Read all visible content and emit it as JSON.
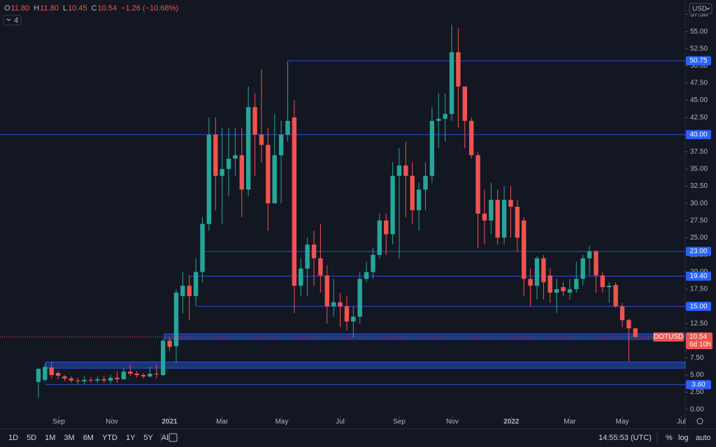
{
  "header": {
    "legend": [
      {
        "key": "O",
        "value": "11.80"
      },
      {
        "key": "H",
        "value": "11.80"
      },
      {
        "key": "L",
        "value": "10.45"
      },
      {
        "key": "C",
        "value": "10.54"
      }
    ],
    "change": "−1.26 (−10.68%)",
    "indicators": "4"
  },
  "toolbar": {
    "ranges": [
      "1D",
      "5D",
      "1M",
      "3M",
      "6M",
      "YTD",
      "1Y",
      "5Y",
      "All"
    ],
    "time": "14:55:53 (UTC)",
    "options": [
      "%",
      "log",
      "auto"
    ]
  },
  "chart_data": {
    "type": "candlestick",
    "symbol": "DOTUSD",
    "countdown": "6d 10h",
    "currency": "USD",
    "up_color": "#26a69a",
    "down_color": "#ef5350",
    "level_color": "#2962ff",
    "candles": {
      "open": [
        4.0,
        4.3,
        6.1,
        5.3,
        4.8,
        4.5,
        4.2,
        4.1,
        4.3,
        4.2,
        4.4,
        4.2,
        4.6,
        4.4,
        5.5,
        5.2,
        5.0,
        4.8,
        5.2,
        5.0,
        10.0,
        9.2,
        16.5,
        18,
        16.5,
        20,
        27,
        40,
        34,
        35,
        36.5,
        37,
        32,
        44,
        40,
        38.5,
        30,
        37,
        40,
        42.5,
        18,
        20.5,
        24,
        22,
        19.5,
        15,
        15.6,
        15,
        12.8,
        13.5,
        19,
        20,
        22.5,
        27.5,
        25.5,
        34,
        35.5,
        34,
        29,
        32,
        34,
        42,
        42.3,
        43,
        52,
        47,
        42,
        37,
        28.5,
        27.5,
        30.5,
        25,
        30.5,
        29.5,
        27.5,
        19,
        18,
        22,
        19.5,
        17,
        17.8,
        17,
        17.5,
        19,
        22,
        23,
        19.5,
        17.8,
        18.1,
        15,
        13,
        11.8
      ],
      "high": [
        6.1,
        6.6,
        6.9,
        5.6,
        5.0,
        4.8,
        4.6,
        4.9,
        4.7,
        4.8,
        4.9,
        5.0,
        5.5,
        6.0,
        6.5,
        5.6,
        5.3,
        6.2,
        6.5,
        10.3,
        10.4,
        17.5,
        20,
        19.5,
        22,
        28,
        42.5,
        42.5,
        41,
        41,
        41,
        41,
        47,
        46,
        49.5,
        41,
        43,
        42,
        50.7,
        45,
        22,
        25,
        26,
        27,
        21,
        19,
        17,
        16.5,
        15,
        20,
        21.5,
        23.5,
        28.5,
        28.5,
        36,
        38,
        39,
        36,
        33,
        36,
        44,
        46,
        46,
        56,
        55.5,
        47,
        42.5,
        37.5,
        32,
        33,
        32,
        32.5,
        32.5,
        30.5,
        28,
        20.5,
        22.3,
        22.5,
        20.5,
        19,
        18.5,
        19,
        21.5,
        22.5,
        23.8,
        23.2,
        20,
        18.5,
        18.5,
        15.5,
        13.2,
        11.8
      ],
      "low": [
        1.7,
        4.0,
        4.5,
        4.4,
        4.1,
        3.9,
        3.6,
        3.7,
        3.9,
        3.9,
        3.9,
        3.8,
        3.9,
        4.3,
        4.9,
        4.6,
        4.5,
        4.6,
        4.5,
        4.8,
        8.5,
        6.8,
        14,
        13,
        15,
        18.5,
        26,
        29,
        27,
        31,
        34,
        28,
        31,
        34,
        36,
        26,
        30,
        30,
        39,
        14,
        16.5,
        16.5,
        18,
        17,
        12.5,
        13.5,
        12,
        11.5,
        10.5,
        12.5,
        18.5,
        19,
        22,
        22.5,
        24,
        22,
        28,
        27,
        26,
        29,
        33,
        38,
        39,
        42,
        41,
        38,
        36.5,
        23.5,
        24,
        25.5,
        24,
        24,
        25,
        23,
        16.5,
        15,
        16,
        16,
        15.5,
        14,
        16.5,
        16,
        17,
        18,
        19.5,
        17,
        17,
        15.5,
        14.8,
        12,
        7,
        10.45
      ],
      "close": [
        5.9,
        6.2,
        5.0,
        4.9,
        4.5,
        4.2,
        4.1,
        4.3,
        4.2,
        4.4,
        4.2,
        4.6,
        4.4,
        5.5,
        5.2,
        5.0,
        4.8,
        5.2,
        5.1,
        10.0,
        9.1,
        17,
        18,
        16.5,
        20,
        27,
        40,
        34,
        35,
        36.5,
        37,
        32,
        44,
        40,
        38.5,
        30,
        37,
        40,
        42,
        18,
        20.5,
        24,
        22,
        19.5,
        15,
        15.6,
        15,
        12.8,
        13.5,
        19,
        20,
        22.5,
        27.5,
        25.5,
        34,
        35.5,
        34,
        29,
        32,
        34,
        42,
        42.3,
        43,
        52,
        47,
        42,
        37,
        28.5,
        27.5,
        30.5,
        25,
        30.5,
        29.5,
        25,
        19,
        18,
        22,
        18.5,
        17,
        17.5,
        17.2,
        17.5,
        19,
        22,
        23,
        19.5,
        17.8,
        18,
        15,
        13,
        11.8,
        10.54
      ]
    },
    "xlim": [
      -5.86,
      98.6
    ],
    "xticks": [
      {
        "value": 3.1,
        "label": "Sep"
      },
      {
        "value": 11.2,
        "label": "Nov"
      },
      {
        "value": 20.0,
        "label": "2021"
      },
      {
        "value": 28.0,
        "label": "Mar"
      },
      {
        "value": 37.1,
        "label": "May"
      },
      {
        "value": 46.0,
        "label": "Jul"
      },
      {
        "value": 55.0,
        "label": "Sep"
      },
      {
        "value": 63.1,
        "label": "Nov"
      },
      {
        "value": 72.1,
        "label": "2022"
      },
      {
        "value": 81.0,
        "label": "Mar"
      },
      {
        "value": 89.0,
        "label": "May"
      },
      {
        "value": 98.0,
        "label": "Jul"
      }
    ],
    "ylim": [
      -1,
      59.6
    ],
    "yticks": [
      {
        "value": 0,
        "label": "0.00"
      },
      {
        "value": 2.5,
        "label": "2.50"
      },
      {
        "value": 5,
        "label": "5.00"
      },
      {
        "value": 7.5,
        "label": "7.50"
      },
      {
        "value": 10,
        "label": "10.00"
      },
      {
        "value": 12.5,
        "label": "12.50"
      },
      {
        "value": 15,
        "label": "15.00"
      },
      {
        "value": 17.5,
        "label": "17.50"
      },
      {
        "value": 20,
        "label": "20.00"
      },
      {
        "value": 22.5,
        "label": "22.50"
      },
      {
        "value": 25,
        "label": "25.00"
      },
      {
        "value": 27.5,
        "label": "27.50"
      },
      {
        "value": 30,
        "label": "30.00"
      },
      {
        "value": 32.5,
        "label": "32.50"
      },
      {
        "value": 35,
        "label": "35.00"
      },
      {
        "value": 37.5,
        "label": "37.50"
      },
      {
        "value": 40,
        "label": "40.00"
      },
      {
        "value": 42.5,
        "label": "42.50"
      },
      {
        "value": 45,
        "label": "45.00"
      },
      {
        "value": 47.5,
        "label": "47.50"
      },
      {
        "value": 50,
        "label": "50.00"
      },
      {
        "value": 52.5,
        "label": "52.50"
      },
      {
        "value": 55,
        "label": "55.00"
      },
      {
        "value": 57.5,
        "label": "57.50"
      }
    ],
    "levels": [
      50.75,
      {
        "value": 40,
        "label": "40.00"
      },
      {
        "value": 23,
        "label": "23.00"
      },
      {
        "value": 19.4,
        "label": "19.40"
      },
      {
        "value": 15,
        "label": "15.00"
      },
      {
        "value": 3.6,
        "label": "3.60"
      }
    ],
    "zones": [
      [
        10.2,
        11.0
      ],
      [
        6.0,
        6.9
      ]
    ]
  }
}
